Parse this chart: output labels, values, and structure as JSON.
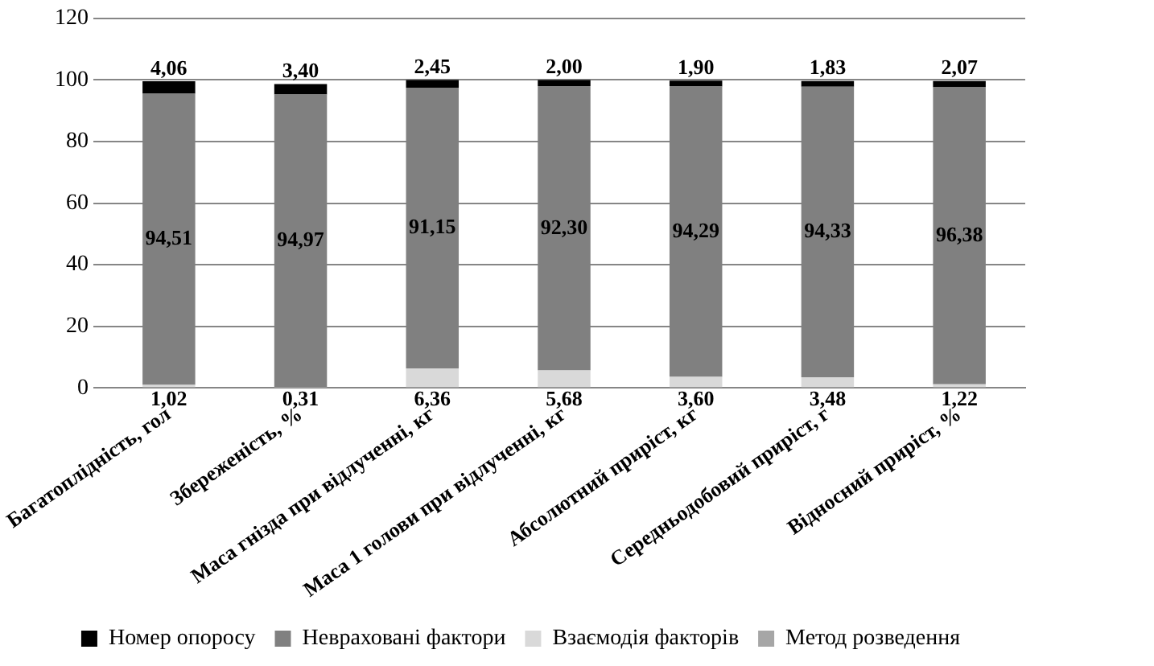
{
  "chart_data": {
    "type": "bar",
    "stacked": true,
    "categories": [
      "Багатоплідність, гол",
      "Збереженість, %",
      "Маса гнізда при відлученні, кг",
      "Маса 1 голови при відлученні, кг",
      "Абсолютний приріст, кг",
      "Середньодобовий приріст, г",
      "Відносний приріст, %"
    ],
    "series": [
      {
        "name": "Метод розведення",
        "color": "#a6a6a6",
        "values": [
          null,
          null,
          null,
          null,
          null,
          null,
          null
        ]
      },
      {
        "name": "Взаємодія факторів",
        "color": "#d9d9d9",
        "values": [
          1.02,
          0.31,
          6.36,
          5.68,
          3.6,
          3.48,
          1.22
        ],
        "value_labels": [
          "1,02",
          "0,31",
          "6,36",
          "5,68",
          "3,60",
          "3,48",
          "1,22"
        ]
      },
      {
        "name": "Невраховані фактори",
        "color": "#808080",
        "values": [
          94.51,
          94.97,
          91.15,
          92.3,
          94.29,
          94.33,
          96.38
        ],
        "value_labels": [
          "94,51",
          "94,97",
          "91,15",
          "92,30",
          "94,29",
          "94,33",
          "96,38"
        ]
      },
      {
        "name": "Номер опоросу",
        "color": "#000000",
        "values": [
          4.06,
          3.4,
          2.45,
          2.0,
          1.9,
          1.83,
          2.07
        ],
        "value_labels": [
          "4,06",
          "3,40",
          "2,45",
          "2,00",
          "1,90",
          "1,83",
          "2,07"
        ]
      }
    ],
    "ylim": [
      0,
      120
    ],
    "yticks": [
      0,
      20,
      40,
      60,
      80,
      100,
      120
    ],
    "grid": "y",
    "legend": "bottom"
  }
}
